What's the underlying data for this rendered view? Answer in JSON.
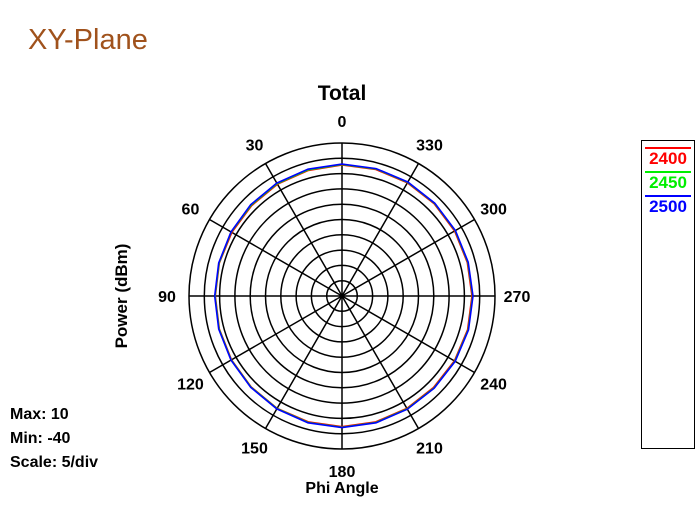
{
  "page_title": "XY-Plane",
  "chart_data": {
    "type": "polar-line",
    "title": "Total",
    "xlabel": "Phi Angle",
    "ylabel": "Power  (dBm)",
    "rlim": [
      -40,
      10
    ],
    "r_scale_per_div": 5,
    "angle_ticks": [
      0,
      30,
      60,
      90,
      120,
      150,
      180,
      210,
      240,
      270,
      300,
      330
    ],
    "angle_direction": "counterclockwise, 0 at top",
    "grid": true,
    "legend_position": "right",
    "angles": [
      0,
      15,
      30,
      45,
      60,
      75,
      90,
      105,
      120,
      135,
      150,
      165,
      180,
      195,
      210,
      225,
      240,
      255,
      270,
      285,
      300,
      315,
      330,
      345
    ],
    "series": [
      {
        "name": "2400",
        "color": "#ff0000",
        "values": [
          2.8,
          2.5,
          2.2,
          1.8,
          1.6,
          1.5,
          1.4,
          1.5,
          1.7,
          2.0,
          2.4,
          2.6,
          2.7,
          2.6,
          2.4,
          2.3,
          2.4,
          2.5,
          2.5,
          2.4,
          2.5,
          2.6,
          2.7,
          2.8
        ]
      },
      {
        "name": "2450",
        "color": "#00ee00",
        "values": [
          3.0,
          2.7,
          2.4,
          2.0,
          1.8,
          1.6,
          1.5,
          1.6,
          1.8,
          2.1,
          2.5,
          2.8,
          2.9,
          2.8,
          2.6,
          2.5,
          2.6,
          2.7,
          2.7,
          2.6,
          2.7,
          2.8,
          2.9,
          3.0
        ]
      },
      {
        "name": "2500",
        "color": "#0000ff",
        "values": [
          3.1,
          2.9,
          2.6,
          2.2,
          1.9,
          1.7,
          1.6,
          1.7,
          1.9,
          2.2,
          2.6,
          2.9,
          3.0,
          2.9,
          2.7,
          2.6,
          2.7,
          2.8,
          2.8,
          2.7,
          2.8,
          2.9,
          3.0,
          3.1
        ]
      }
    ]
  },
  "stats": {
    "max": "Max: 10",
    "min": "Min: -40",
    "scale": "Scale: 5/div"
  }
}
